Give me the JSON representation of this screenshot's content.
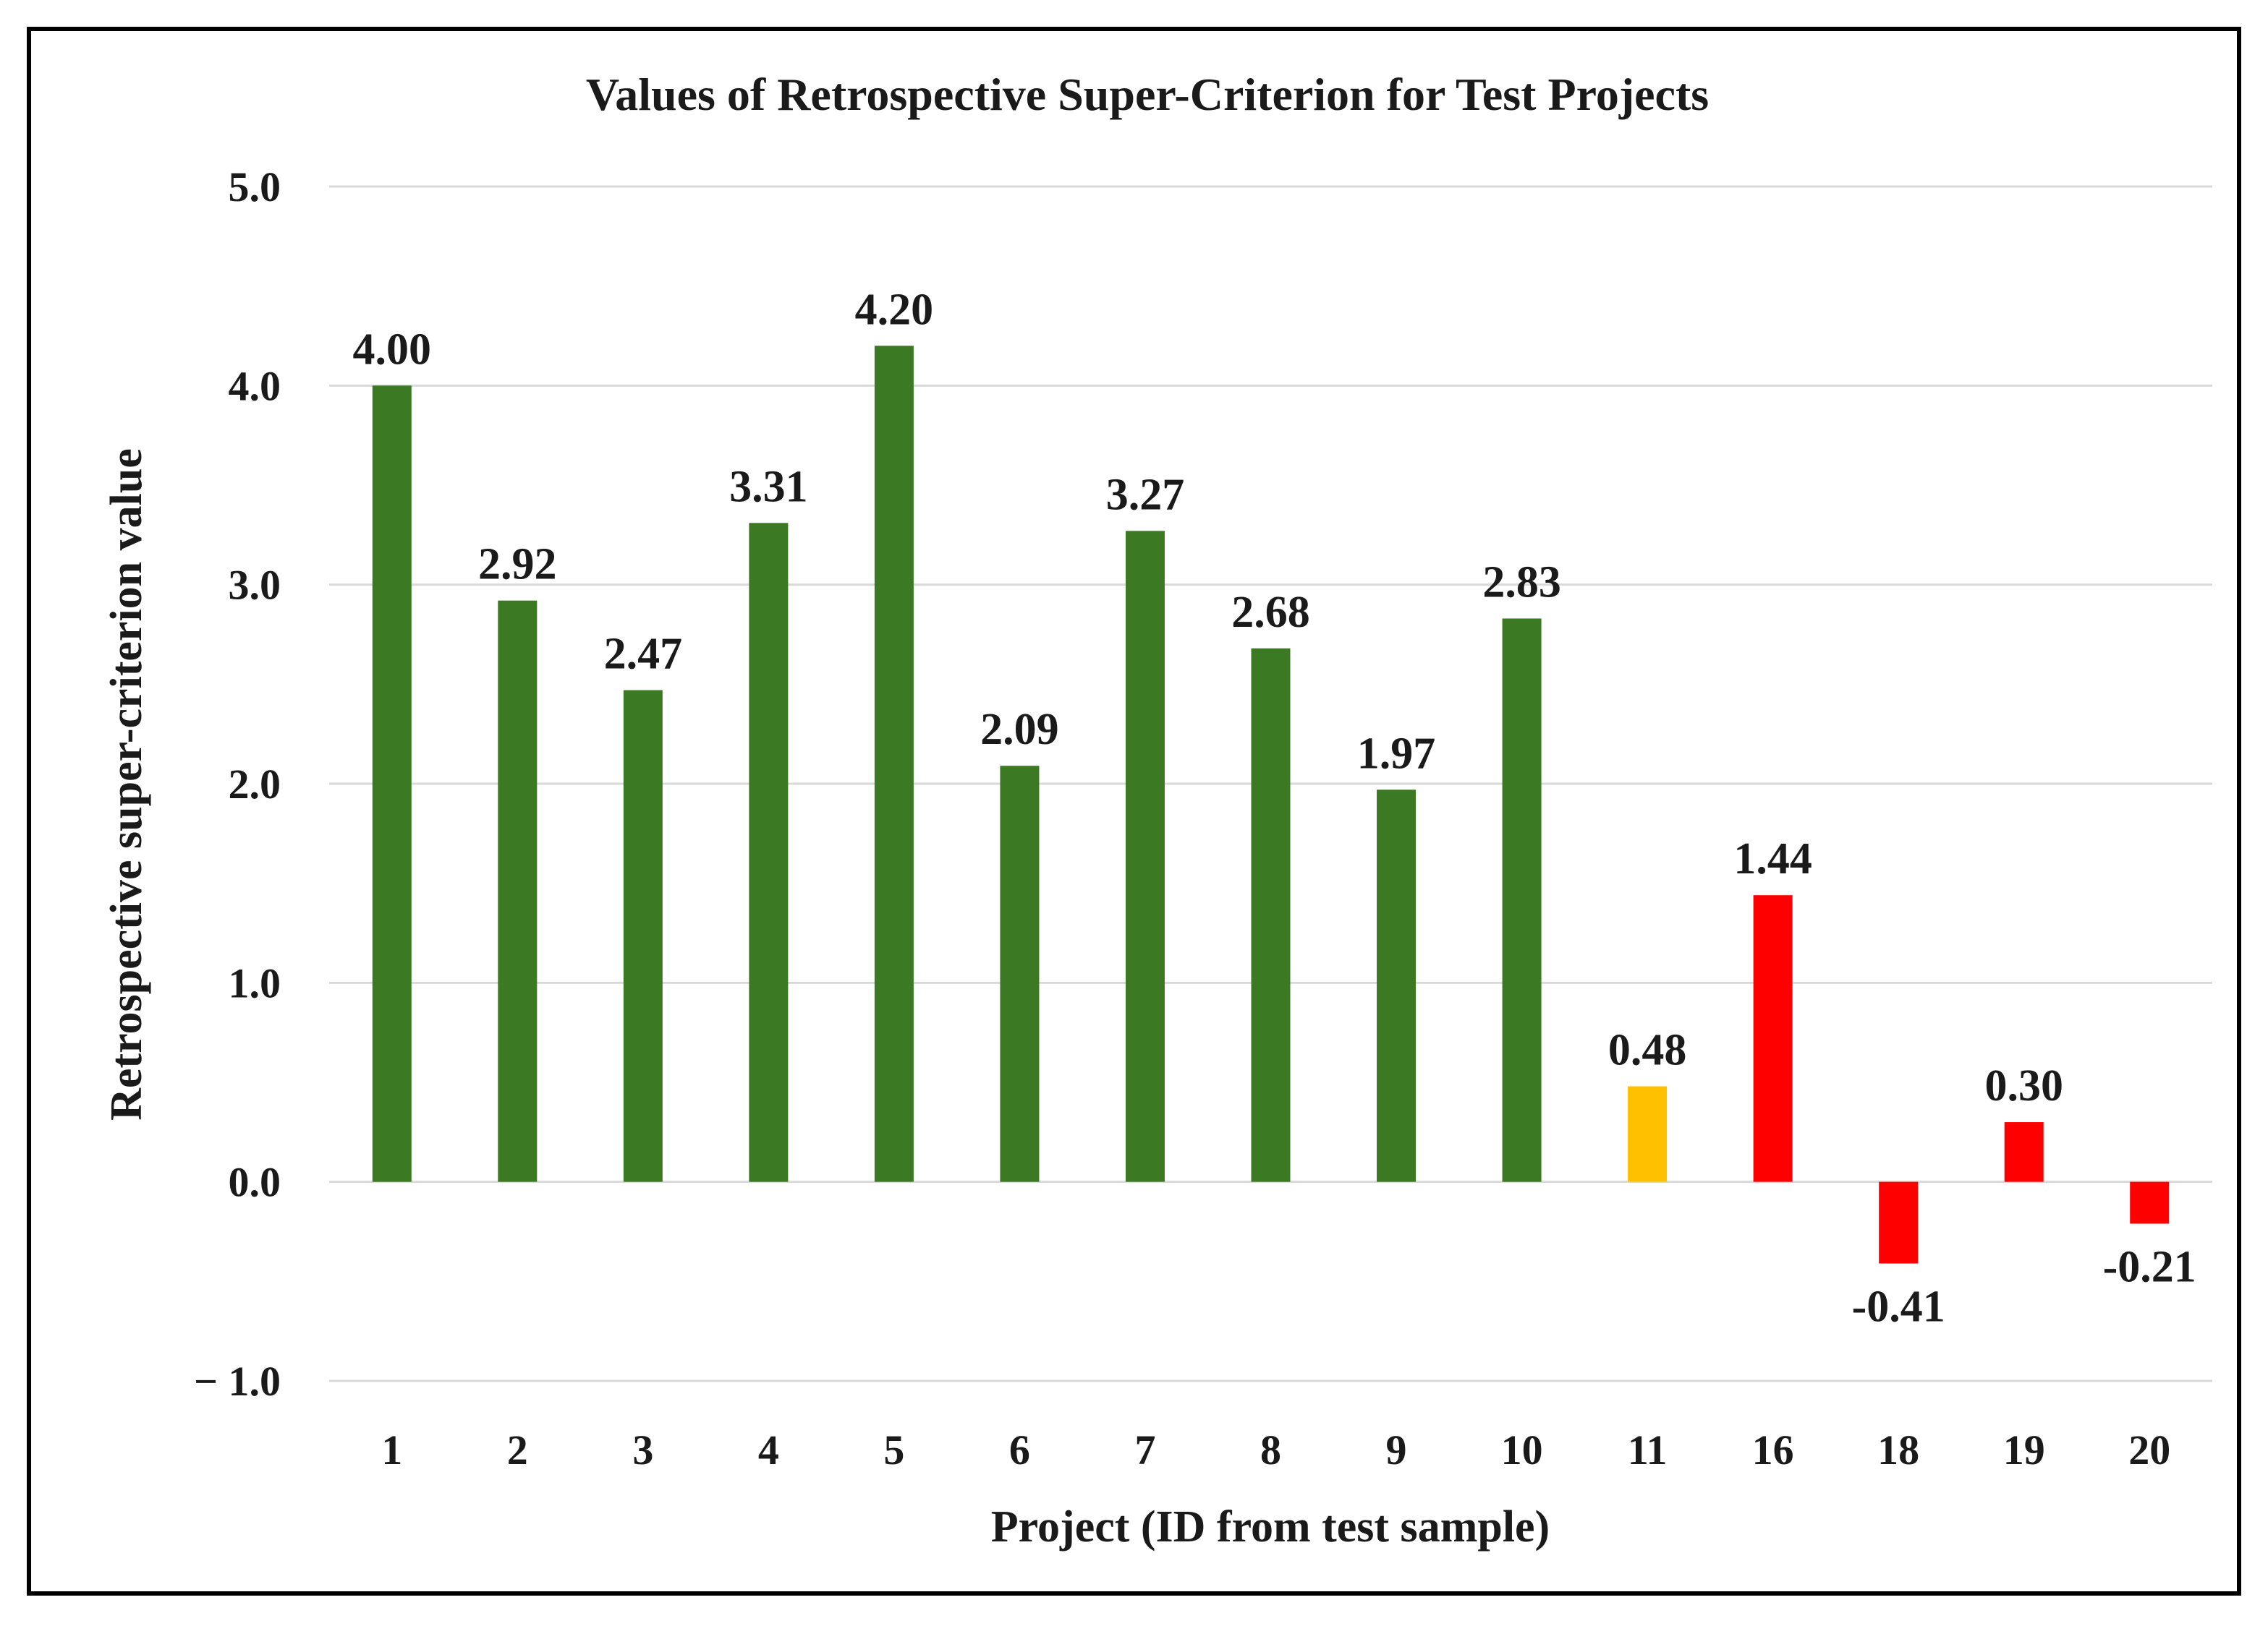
{
  "chart_data": {
    "type": "bar",
    "title": "Values of Retrospective Super-Criterion for Test Projects",
    "xlabel": "Project (ID from test sample)",
    "ylabel": "Retrospective super-criterion value",
    "ylim": [
      -1.0,
      5.0
    ],
    "y_ticks": [
      5.0,
      4.0,
      3.0,
      2.0,
      1.0,
      0.0,
      -1.0
    ],
    "y_tick_labels": [
      "5.0",
      "4.0",
      "3.0",
      "2.0",
      "1.0",
      "0.0",
      "− 1.0"
    ],
    "grid": true,
    "categories": [
      "1",
      "2",
      "3",
      "4",
      "5",
      "6",
      "7",
      "8",
      "9",
      "10",
      "11",
      "16",
      "18",
      "19",
      "20"
    ],
    "values": [
      4.0,
      2.92,
      2.47,
      3.31,
      4.2,
      2.09,
      3.27,
      2.68,
      1.97,
      2.83,
      0.48,
      1.44,
      -0.41,
      0.3,
      -0.21
    ],
    "value_labels": [
      "4.00",
      "2.92",
      "2.47",
      "3.31",
      "4.20",
      "2.09",
      "3.27",
      "2.68",
      "1.97",
      "2.83",
      "0.48",
      "1.44",
      "-0.41",
      "0.30",
      "-0.21"
    ],
    "bar_colors": [
      "#3b7a22",
      "#3b7a22",
      "#3b7a22",
      "#3b7a22",
      "#3b7a22",
      "#3b7a22",
      "#3b7a22",
      "#3b7a22",
      "#3b7a22",
      "#3b7a22",
      "#ffc000",
      "#ff0000",
      "#ff0000",
      "#ff0000",
      "#ff0000"
    ]
  }
}
